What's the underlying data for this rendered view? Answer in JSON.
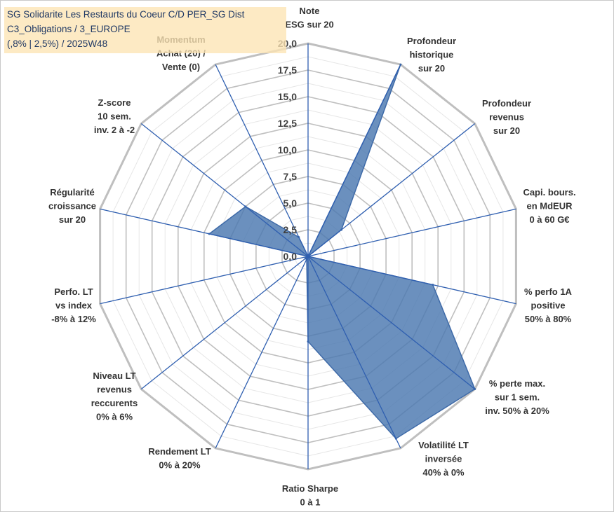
{
  "title_lines": [
    "SG Solidarite Les Restaurts du Coeur C/D PER_SG Dist",
    "C3_Obligations / 3_EUROPE",
    "(,8% | 2,5%) / 2025W48"
  ],
  "chart_data": {
    "type": "radar",
    "title": "SG Solidarite Les Restaurts du Coeur C/D PER_SG Dist C3_Obligations / 3_EUROPE (,8% | 2,5%) / 2025W48",
    "rlim": [
      0,
      20
    ],
    "ticks": [
      "0,0",
      "2,5",
      "5,0",
      "7,5",
      "10,0",
      "12,5",
      "15,0",
      "17,5",
      "20,0"
    ],
    "grid": true,
    "legend": "none",
    "colors": {
      "fill": "#4a78b0",
      "line": "#3e6aa8",
      "axis": "#2f5fb0",
      "grid": "#bfbfbf",
      "grid_minor": "#e6e6e6"
    },
    "axes": [
      {
        "label": [
          "Note",
          "ESG sur 20"
        ],
        "value": 0
      },
      {
        "label": [
          "Profondeur",
          "historique",
          "sur 20"
        ],
        "value": 20
      },
      {
        "label": [
          "Profondeur",
          "revenus",
          "sur 20"
        ],
        "value": 4
      },
      {
        "label": [
          "Capi. bours.",
          "en MdEUR",
          "0 à 60 G€"
        ],
        "value": 0
      },
      {
        "label": [
          "% perfo 1A",
          "positive",
          "50% à 80%"
        ],
        "value": 12
      },
      {
        "label": [
          "% perte max.",
          "sur 1 sem.",
          "inv. 50% à 20%"
        ],
        "value": 20
      },
      {
        "label": [
          "Volatilité LT",
          "inversée",
          "40% à 0%"
        ],
        "value": 19
      },
      {
        "label": [
          "Ratio Sharpe",
          "0 à 1"
        ],
        "value": 8
      },
      {
        "label": [
          "Rendement LT",
          "0% à 20%"
        ],
        "value": 0.3
      },
      {
        "label": [
          "Niveau LT",
          "revenus",
          "reccurents",
          "0% à 6%"
        ],
        "value": 0.3
      },
      {
        "label": [
          "Perfo. LT",
          "vs index",
          "-8% à 12%"
        ],
        "value": 0
      },
      {
        "label": [
          "Régularité",
          "croissance",
          "sur 20"
        ],
        "value": 9.5
      },
      {
        "label": [
          "Z-score",
          "10 sem.",
          "inv. 2 à -2"
        ],
        "value": 7.5
      },
      {
        "label": [
          "Momentum",
          "Achat (20) /",
          "Vente (0)"
        ],
        "value": 2
      }
    ]
  }
}
